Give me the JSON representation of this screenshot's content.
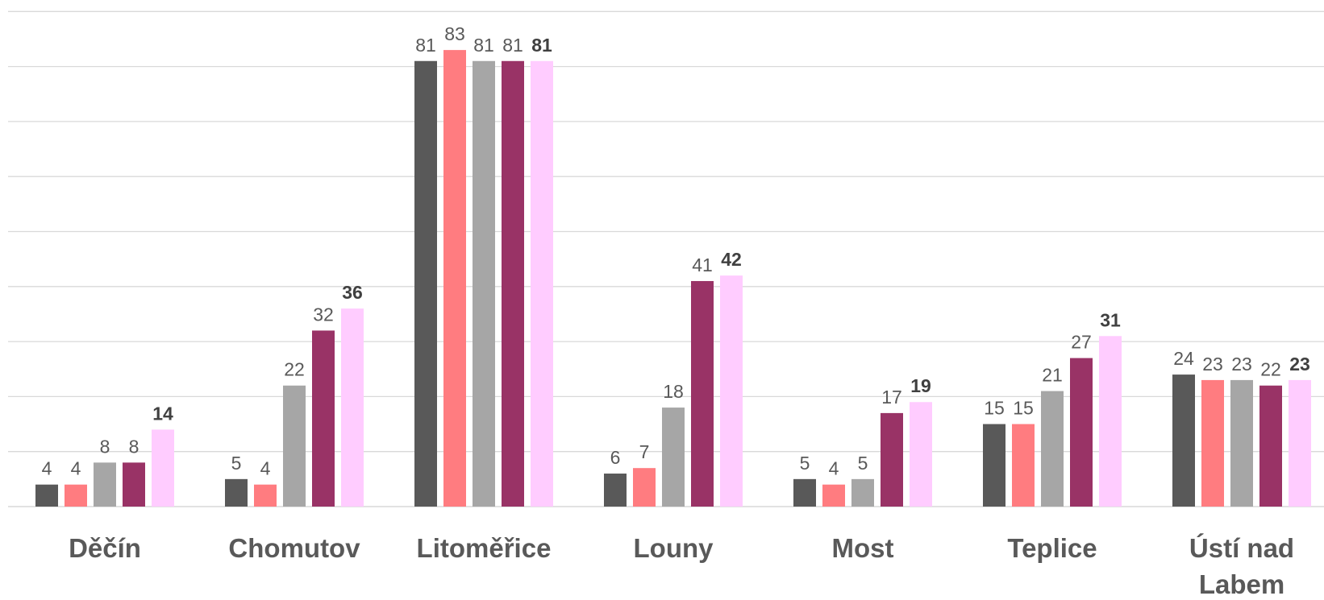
{
  "chart_data": {
    "type": "bar",
    "categories": [
      [
        "Děčín"
      ],
      [
        "Chomutov"
      ],
      [
        "Litoměřice"
      ],
      [
        "Louny"
      ],
      [
        "Most"
      ],
      [
        "Teplice"
      ],
      [
        "Ústí nad",
        "Labem"
      ]
    ],
    "series": [
      {
        "values": [
          4,
          5,
          81,
          6,
          5,
          15,
          24
        ],
        "color": "#595959"
      },
      {
        "values": [
          4,
          4,
          83,
          7,
          4,
          15,
          23
        ],
        "color": "#ff7c80"
      },
      {
        "values": [
          8,
          22,
          81,
          18,
          5,
          21,
          23
        ],
        "color": "#a6a6a6"
      },
      {
        "values": [
          8,
          32,
          81,
          41,
          17,
          27,
          22
        ],
        "color": "#993366"
      },
      {
        "values": [
          14,
          36,
          81,
          42,
          19,
          31,
          23
        ],
        "color": "#ffccff"
      }
    ],
    "ylim": [
      0,
      90
    ],
    "grid": true,
    "gridline_step": 10,
    "last_series_labels_bold": true,
    "title": "",
    "xlabel": "",
    "ylabel": ""
  }
}
